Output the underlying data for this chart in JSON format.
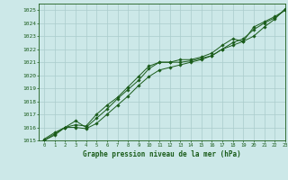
{
  "bg_color": "#cce8e8",
  "grid_color": "#aacccc",
  "line_color": "#1a5c1a",
  "title": "Graphe pression niveau de la mer (hPa)",
  "xlim": [
    -0.5,
    23
  ],
  "ylim": [
    1015,
    1025.5
  ],
  "xticks": [
    0,
    1,
    2,
    3,
    4,
    5,
    6,
    7,
    8,
    9,
    10,
    11,
    12,
    13,
    14,
    15,
    16,
    17,
    18,
    19,
    20,
    21,
    22,
    23
  ],
  "yticks": [
    1015,
    1016,
    1017,
    1018,
    1019,
    1020,
    1021,
    1022,
    1023,
    1024,
    1025
  ],
  "series1": [
    1015.1,
    1015.6,
    1016.0,
    1016.2,
    1016.1,
    1017.0,
    1017.7,
    1018.3,
    1019.1,
    1019.9,
    1020.7,
    1021.0,
    1021.0,
    1021.0,
    1021.1,
    1021.3,
    1021.5,
    1022.0,
    1022.3,
    1022.6,
    1023.0,
    1023.7,
    1024.3,
    1025.1
  ],
  "series2": [
    1015.0,
    1015.4,
    1016.0,
    1016.0,
    1015.9,
    1016.3,
    1017.0,
    1017.7,
    1018.4,
    1019.2,
    1019.9,
    1020.4,
    1020.6,
    1020.8,
    1021.0,
    1021.2,
    1021.5,
    1022.0,
    1022.5,
    1022.8,
    1023.5,
    1024.0,
    1024.4,
    1025.0
  ],
  "series3": [
    1015.0,
    1015.5,
    1016.0,
    1016.5,
    1016.0,
    1016.7,
    1017.4,
    1018.2,
    1018.9,
    1019.6,
    1020.5,
    1021.0,
    1021.0,
    1021.2,
    1021.2,
    1021.4,
    1021.7,
    1022.3,
    1022.8,
    1022.6,
    1023.7,
    1024.1,
    1024.5,
    1025.0
  ]
}
